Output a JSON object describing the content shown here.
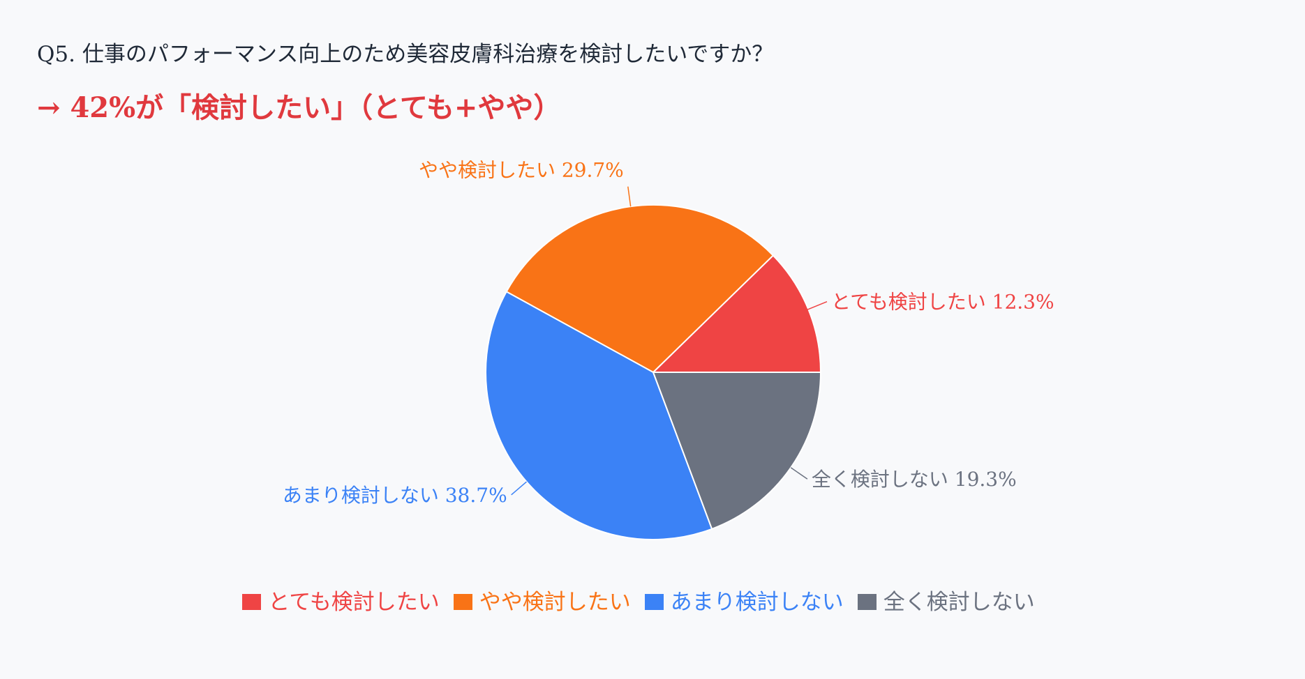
{
  "question": "Q5. 仕事のパフォーマンス向上のため美容皮膚科治療を検討したいですか？",
  "headline": "→ 42%が「検討したい」（とても+やや）",
  "chart_data": {
    "type": "pie",
    "title": "",
    "slices": [
      {
        "name": "とても検討したい",
        "value": 12.3,
        "label": "とても検討したい 12.3%",
        "color": "#ef4444"
      },
      {
        "name": "やや検討したい",
        "value": 29.7,
        "label": "やや検討したい 29.7%",
        "color": "#f97316"
      },
      {
        "name": "あまり検討しない",
        "value": 38.7,
        "label": "あまり検討しない 38.7%",
        "color": "#3b82f6"
      },
      {
        "name": "全く検討しない",
        "value": 19.3,
        "label": "全く検討しない 19.3%",
        "color": "#6b7280"
      }
    ],
    "start": "3 o'clock",
    "direction": "counter-clockwise",
    "legend_position": "bottom"
  },
  "legend": [
    {
      "label": "とても検討したい",
      "color": "#ef4444"
    },
    {
      "label": "やや検討したい",
      "color": "#f97316"
    },
    {
      "label": "あまり検討しない",
      "color": "#3b82f6"
    },
    {
      "label": "全く検討しない",
      "color": "#6b7280"
    }
  ]
}
